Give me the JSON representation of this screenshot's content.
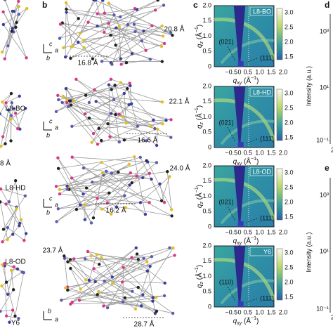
{
  "panel_labels": {
    "b": "b",
    "c": "c",
    "d": "d",
    "e": "e"
  },
  "materials": [
    "L8-BO",
    "L8-HD",
    "L8-OD",
    "Y6"
  ],
  "partial_left_text": "8 Å",
  "structures": [
    {
      "d1": "20.8 Å",
      "d2": "16.8 Å",
      "axes": [
        "c",
        "a",
        "b"
      ]
    },
    {
      "d1": "22.1 Å",
      "d2": "16.6 Å",
      "axes": [
        "c",
        "a",
        "b"
      ]
    },
    {
      "d1": "24.0 Å",
      "d2": "16.2 Å",
      "axes": [
        "c",
        "a",
        "b"
      ]
    },
    {
      "d1": "23.7 Å",
      "d2": "28.7 Å",
      "axes": [
        "b",
        "a"
      ]
    }
  ],
  "giwaxs": {
    "qz_ticks": [
      "2.0",
      "1.5",
      "1.0",
      "0.5",
      "0"
    ],
    "qxy_ticks": [
      "−0.5",
      "0",
      "0.5",
      "1.0",
      "1.5",
      "2.0"
    ],
    "colorbar_ticks": [
      "3.0",
      "2.5",
      "2.0",
      "1.5"
    ],
    "qz_label": {
      "q": "q",
      "sub": "z",
      "unit": " (Å",
      "sup": "−1",
      "close": ")"
    },
    "qxy_label": {
      "q": "q",
      "sub": "xy",
      "unit": " (Å",
      "sup": "−1",
      "close": ")"
    },
    "panels": [
      {
        "name": "L8-BO",
        "peaks": [
          "(021)",
          "(111̄)"
        ]
      },
      {
        "name": "L8-HD",
        "peaks": [
          "(021)",
          "(111̄)"
        ]
      },
      {
        "name": "L8-OD",
        "peaks": [
          "(021)",
          "(111̄)"
        ]
      },
      {
        "name": "Y6",
        "peaks": [
          "(110)",
          "(111̄)"
        ]
      }
    ]
  },
  "profiles": {
    "ylabel": "Intensity (a.u.)",
    "ticks": [
      "10³",
      "10¹",
      "10⁻¹"
    ],
    "xtick": "2"
  }
}
